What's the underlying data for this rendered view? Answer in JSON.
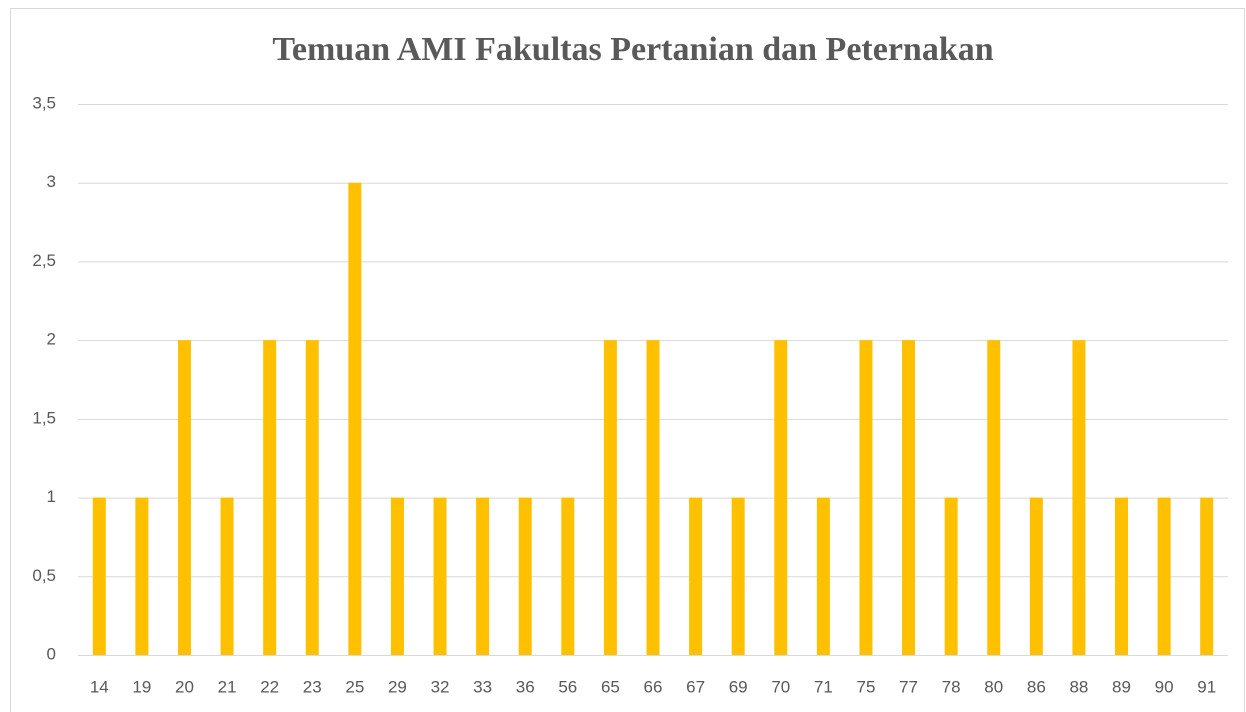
{
  "chart_data": {
    "type": "bar",
    "title": "Temuan AMI Fakultas Pertanian dan Peternakan",
    "categories": [
      "14",
      "19",
      "20",
      "21",
      "22",
      "23",
      "25",
      "29",
      "32",
      "33",
      "36",
      "56",
      "65",
      "66",
      "67",
      "69",
      "70",
      "71",
      "75",
      "77",
      "78",
      "80",
      "86",
      "88",
      "89",
      "90",
      "91"
    ],
    "values": [
      1,
      1,
      2,
      1,
      2,
      2,
      3,
      1,
      1,
      1,
      1,
      1,
      2,
      2,
      1,
      1,
      2,
      1,
      2,
      2,
      1,
      2,
      1,
      2,
      1,
      1,
      1
    ],
    "color": "#ffc000",
    "ylim": [
      0,
      3.5
    ],
    "yticks": [
      0,
      {
        "value": 0.5,
        "label": "0,5"
      },
      1,
      {
        "value": 1.5,
        "label": "1,5"
      },
      2,
      {
        "value": 2.5,
        "label": "2,5"
      },
      3,
      {
        "value": 3.5,
        "label": "3,5"
      }
    ],
    "grid": true
  }
}
